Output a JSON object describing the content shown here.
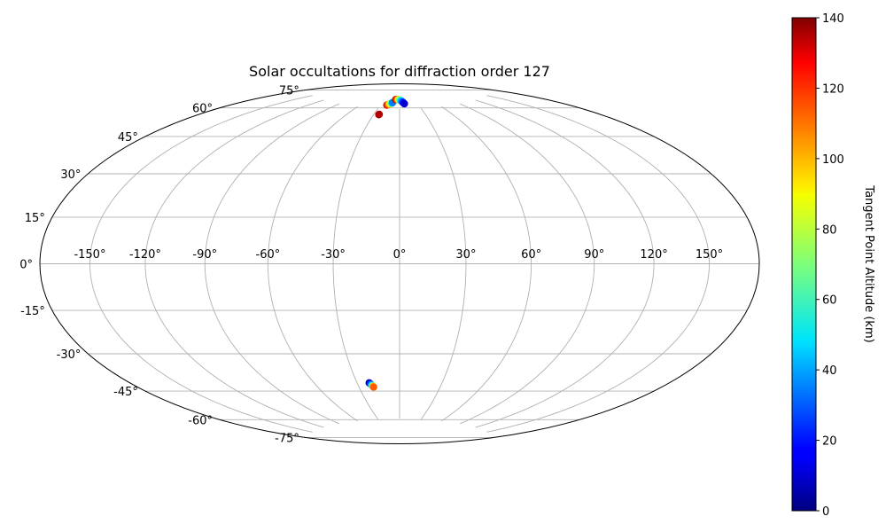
{
  "chart_data": {
    "type": "scatter",
    "projection": "hammer",
    "title": "Solar occultations for diffraction order 127",
    "xlabel": "",
    "ylabel": "",
    "grid": true,
    "x_ticks": [
      "-150°",
      "-120°",
      "-90°",
      "-60°",
      "-30°",
      "0°",
      "30°",
      "60°",
      "90°",
      "120°",
      "150°"
    ],
    "x_tick_values": [
      -150,
      -120,
      -90,
      -60,
      -30,
      0,
      30,
      60,
      90,
      120,
      150
    ],
    "y_ticks": [
      "-75°",
      "-60°",
      "-45°",
      "-30°",
      "-15°",
      "0°",
      "15°",
      "30°",
      "45°",
      "60°",
      "75°"
    ],
    "y_tick_values": [
      -75,
      -60,
      -45,
      -30,
      -15,
      0,
      15,
      30,
      45,
      60,
      75
    ],
    "colorbar": {
      "label": "Tangent Point Altitude (km)",
      "colormap": "jet",
      "range": [
        0,
        140
      ],
      "ticks": [
        "0",
        "20",
        "40",
        "60",
        "80",
        "100",
        "120",
        "140"
      ],
      "tick_values": [
        0,
        20,
        40,
        60,
        80,
        100,
        120,
        140
      ],
      "placement": "right"
    },
    "series": [
      {
        "points": [
          {
            "lon": -24,
            "lat": 71.5,
            "alt": 136
          },
          {
            "lon": -23.8,
            "lat": 71.7,
            "alt": 133
          },
          {
            "lon": -20,
            "lat": 77,
            "alt": 130
          },
          {
            "lon": -19,
            "lat": 77.2,
            "alt": 120
          },
          {
            "lon": -18,
            "lat": 77.4,
            "alt": 110
          },
          {
            "lon": -17,
            "lat": 77.6,
            "alt": 100
          },
          {
            "lon": -16,
            "lat": 77.8,
            "alt": 90
          },
          {
            "lon": -15,
            "lat": 78.0,
            "alt": 80
          },
          {
            "lon": -14,
            "lat": 78.2,
            "alt": 65
          },
          {
            "lon": -13,
            "lat": 78.35,
            "alt": 50
          },
          {
            "lon": -12.5,
            "lat": 78.45,
            "alt": 35
          },
          {
            "lon": -8,
            "lat": 80.3,
            "alt": 138
          },
          {
            "lon": -7,
            "lat": 80.35,
            "alt": 130
          },
          {
            "lon": -6,
            "lat": 80.4,
            "alt": 122
          },
          {
            "lon": -5,
            "lat": 80.4,
            "alt": 115
          },
          {
            "lon": -4,
            "lat": 80.4,
            "alt": 108
          },
          {
            "lon": -3,
            "lat": 80.35,
            "alt": 100
          },
          {
            "lon": -2,
            "lat": 80.3,
            "alt": 92
          },
          {
            "lon": -1,
            "lat": 80.25,
            "alt": 85
          },
          {
            "lon": 0,
            "lat": 80.1,
            "alt": 75
          },
          {
            "lon": 1,
            "lat": 79.95,
            "alt": 65
          },
          {
            "lon": 2,
            "lat": 79.8,
            "alt": 55
          },
          {
            "lon": 3,
            "lat": 79.55,
            "alt": 48
          },
          {
            "lon": 4,
            "lat": 79.3,
            "alt": 40
          },
          {
            "lon": 5,
            "lat": 79.0,
            "alt": 32
          },
          {
            "lon": 6,
            "lat": 78.7,
            "alt": 25
          },
          {
            "lon": 7,
            "lat": 78.3,
            "alt": 18
          },
          {
            "lon": 8,
            "lat": 77.9,
            "alt": 12
          },
          {
            "lon": -21.5,
            "lat": -55.6,
            "alt": 5
          },
          {
            "lon": -21.0,
            "lat": -56.0,
            "alt": 15
          },
          {
            "lon": -20.6,
            "lat": -56.4,
            "alt": 30
          },
          {
            "lon": -20.2,
            "lat": -56.8,
            "alt": 45
          },
          {
            "lon": -19.8,
            "lat": -57.2,
            "alt": 70
          },
          {
            "lon": -19.5,
            "lat": -57.5,
            "alt": 95
          },
          {
            "lon": -19.3,
            "lat": -57.8,
            "alt": 110
          }
        ]
      }
    ]
  }
}
